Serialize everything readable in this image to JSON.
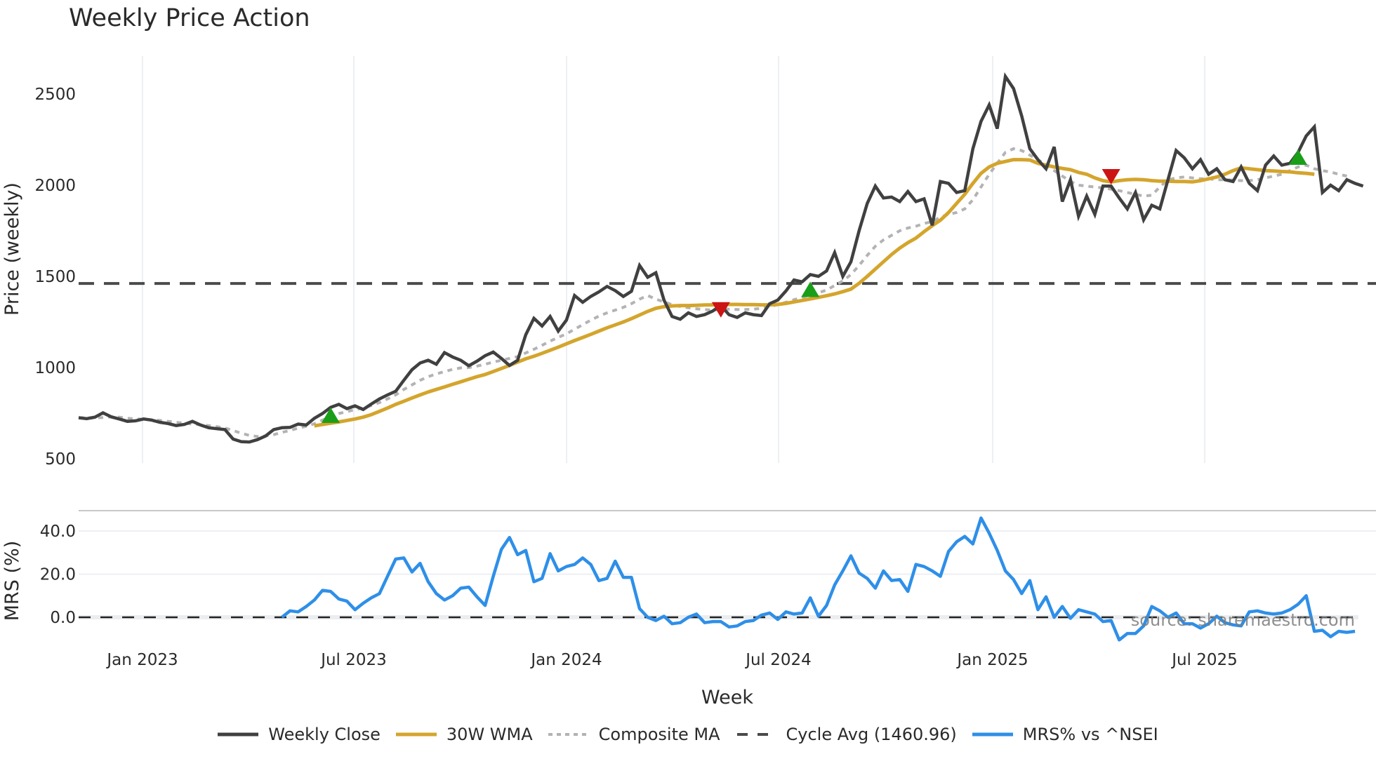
{
  "title": "Weekly Price Action",
  "source_label": "source: sharemaestro.com",
  "colors": {
    "close": "#404040",
    "wma": "#D4A52C",
    "composite": "#B3B3B3",
    "cycle": "#4a4a4a",
    "mrs": "#2E8FE8",
    "buy": "#1A9E1A",
    "sell": "#CC1414",
    "grid": "#ECEFF3"
  },
  "legend": [
    {
      "key": "close",
      "label": "Weekly Close"
    },
    {
      "key": "wma",
      "label": "30W WMA"
    },
    {
      "key": "composite",
      "label": "Composite MA"
    },
    {
      "key": "cycle",
      "label": "Cycle Avg (1460.96)"
    },
    {
      "key": "mrs",
      "label": "MRS% vs ^NSEI"
    }
  ],
  "chart_data": [
    {
      "type": "line",
      "title": "Weekly Price Action",
      "xlabel": "Week",
      "ylabel": "Price (weekly)",
      "x_ticks": [
        "Jan 2023",
        "Jul 2023",
        "Jan 2024",
        "Jul 2024",
        "Jan 2025",
        "Jul 2025"
      ],
      "y_ticks": [
        500,
        1000,
        1500,
        2000,
        2500
      ],
      "ylim": [
        470,
        2680
      ],
      "grid": "vertical",
      "start_week": "2022-11-06",
      "cycle_avg": 1460.96,
      "series": [
        {
          "name": "Weekly Close",
          "start_index": 0,
          "values": [
            725,
            720,
            728,
            752,
            730,
            718,
            705,
            708,
            718,
            712,
            700,
            693,
            682,
            688,
            705,
            685,
            670,
            665,
            660,
            608,
            594,
            592,
            605,
            625,
            660,
            670,
            672,
            690,
            685,
            722,
            748,
            782,
            798,
            775,
            790,
            770,
            800,
            828,
            850,
            870,
            930,
            988,
            1025,
            1040,
            1018,
            1082,
            1058,
            1040,
            1010,
            1035,
            1065,
            1085,
            1050,
            1012,
            1040,
            1180,
            1270,
            1228,
            1280,
            1200,
            1260,
            1395,
            1358,
            1390,
            1415,
            1445,
            1422,
            1390,
            1418,
            1560,
            1495,
            1520,
            1370,
            1280,
            1265,
            1300,
            1280,
            1290,
            1310,
            1340,
            1290,
            1275,
            1300,
            1290,
            1285,
            1350,
            1370,
            1420,
            1480,
            1470,
            1510,
            1500,
            1530,
            1630,
            1500,
            1580,
            1750,
            1900,
            1995,
            1930,
            1935,
            1910,
            1965,
            1910,
            1925,
            1780,
            2020,
            2010,
            1960,
            1970,
            2200,
            2350,
            2440,
            2310,
            2596,
            2530,
            2380,
            2200,
            2140,
            2090,
            2210,
            1910,
            2030,
            1830,
            1940,
            1840,
            1995,
            1995,
            1930,
            1870,
            1960,
            1810,
            1890,
            1870,
            2030,
            2190,
            2150,
            2090,
            2140,
            2060,
            2090,
            2030,
            2020,
            2100,
            2010,
            1970,
            2110,
            2160,
            2110,
            2120,
            2180,
            2270,
            2320,
            1960,
            2000,
            1970,
            2030,
            2010,
            1995
          ]
        },
        {
          "name": "30W WMA",
          "start_index": 29,
          "values": [
            680,
            688,
            695,
            702,
            710,
            718,
            728,
            742,
            760,
            778,
            798,
            815,
            833,
            850,
            866,
            880,
            894,
            908,
            922,
            936,
            950,
            962,
            978,
            995,
            1012,
            1030,
            1048,
            1062,
            1078,
            1095,
            1112,
            1130,
            1148,
            1165,
            1182,
            1200,
            1218,
            1234,
            1250,
            1268,
            1288,
            1308,
            1325,
            1334,
            1338,
            1340,
            1340,
            1341,
            1343,
            1344,
            1345,
            1346,
            1346,
            1345,
            1345,
            1344,
            1344,
            1346,
            1352,
            1360,
            1368,
            1376,
            1385,
            1394,
            1404,
            1416,
            1430,
            1462,
            1500,
            1540,
            1580,
            1620,
            1655,
            1685,
            1710,
            1745,
            1778,
            1808,
            1850,
            1900,
            1950,
            2010,
            2065,
            2100,
            2120,
            2130,
            2140,
            2140,
            2138,
            2120,
            2110,
            2100,
            2092,
            2085,
            2070,
            2060,
            2040,
            2025,
            2018,
            2025,
            2030,
            2032,
            2030,
            2025,
            2022,
            2022,
            2020,
            2020,
            2018,
            2025,
            2035,
            2045,
            2060,
            2080,
            2095,
            2090,
            2085,
            2080,
            2078,
            2075,
            2073,
            2068,
            2065,
            2060
          ]
        },
        {
          "name": "Composite MA",
          "start_index": 0,
          "values": [
            725,
            724,
            724,
            726,
            730,
            728,
            722,
            718,
            716,
            714,
            710,
            705,
            700,
            695,
            690,
            686,
            682,
            676,
            668,
            655,
            640,
            628,
            622,
            625,
            632,
            645,
            655,
            668,
            678,
            692,
            712,
            730,
            748,
            758,
            770,
            778,
            792,
            808,
            828,
            850,
            880,
            905,
            930,
            950,
            965,
            978,
            990,
            998,
            1000,
            1008,
            1018,
            1030,
            1040,
            1050,
            1060,
            1080,
            1100,
            1122,
            1145,
            1165,
            1185,
            1210,
            1235,
            1260,
            1282,
            1300,
            1315,
            1330,
            1350,
            1375,
            1395,
            1375,
            1360,
            1345,
            1335,
            1328,
            1322,
            1318,
            1315,
            1320,
            1320,
            1318,
            1318,
            1320,
            1325,
            1335,
            1345,
            1358,
            1372,
            1385,
            1398,
            1410,
            1425,
            1450,
            1475,
            1510,
            1560,
            1615,
            1665,
            1700,
            1725,
            1750,
            1765,
            1775,
            1790,
            1800,
            1825,
            1840,
            1850,
            1870,
            1920,
            1990,
            2060,
            2120,
            2180,
            2200,
            2190,
            2165,
            2140,
            2110,
            2080,
            2050,
            2020,
            2000,
            1995,
            1990,
            1985,
            1978,
            1970,
            1960,
            1950,
            1940,
            1945,
            1990,
            2030,
            2040,
            2045,
            2040,
            2035,
            2035,
            2030,
            2030,
            2028,
            2025,
            2025,
            2030,
            2040,
            2050,
            2060,
            2080,
            2100,
            2110,
            2090,
            2080,
            2072,
            2060,
            2050
          ]
        }
      ],
      "signals": [
        {
          "type": "buy",
          "index": 31,
          "price": 735
        },
        {
          "type": "sell",
          "index": 79,
          "price": 1320
        },
        {
          "type": "buy",
          "index": 90,
          "price": 1425
        },
        {
          "type": "sell",
          "index": 127,
          "price": 2050
        },
        {
          "type": "buy",
          "index": 150,
          "price": 2150
        }
      ]
    },
    {
      "type": "line",
      "title": "",
      "xlabel": "Week",
      "ylabel": "MRS (%)",
      "y_ticks": [
        0.0,
        20.0,
        40.0
      ],
      "ylim": [
        -12,
        50
      ],
      "reference_line": 0,
      "series": [
        {
          "name": "MRS% vs ^NSEI",
          "start_index": 25,
          "values": [
            0,
            3,
            2.5,
            5,
            8,
            12.5,
            12,
            8.5,
            7.5,
            3.5,
            6.5,
            9,
            11,
            19,
            27,
            27.5,
            21,
            25,
            16.5,
            11,
            8,
            10,
            13.5,
            14,
            9.5,
            5.5,
            19,
            31.5,
            37,
            29,
            31,
            16.5,
            18,
            29.5,
            21.5,
            23.5,
            24.5,
            27.5,
            24.5,
            17,
            18,
            26,
            18.5,
            18.5,
            4,
            0,
            -1.5,
            0.5,
            -3,
            -2.5,
            0,
            1.5,
            -2.5,
            -2,
            -2,
            -4.5,
            -4,
            -2,
            -1.5,
            1,
            2,
            -1,
            2.5,
            1.5,
            2,
            9,
            0.5,
            5.5,
            15,
            21.5,
            28.5,
            20.5,
            18,
            13.5,
            21.5,
            17,
            17.5,
            12,
            24.5,
            23.5,
            21.5,
            19,
            30.5,
            35,
            37.5,
            34,
            46,
            39,
            31,
            21.5,
            17.5,
            11,
            17,
            3.5,
            9.5,
            0,
            5,
            -0.5,
            3.5,
            2.5,
            1.5,
            -2,
            -1.5,
            -10.5,
            -7.5,
            -7.5,
            -4,
            5,
            3,
            0,
            2,
            -3,
            -3,
            -5,
            -3,
            0.5,
            -2.5,
            -3.5,
            -4,
            2.5,
            3,
            2,
            1.5,
            2,
            3.5,
            6,
            10,
            -6.5,
            -6,
            -9,
            -6.5,
            -7,
            -6.5
          ]
        }
      ]
    }
  ],
  "axes": {
    "price": {
      "ylabel": "Price (weekly)",
      "ticks": [
        "500",
        "1000",
        "1500",
        "2000",
        "2500"
      ]
    },
    "mrs": {
      "ylabel": "MRS (%)",
      "ticks": [
        "0.0",
        "20.0",
        "40.0"
      ]
    },
    "x": {
      "title": "Week",
      "ticks": [
        "Jan 2023",
        "Jul 2023",
        "Jan 2024",
        "Jul 2024",
        "Jan 2025",
        "Jul 2025"
      ]
    }
  }
}
